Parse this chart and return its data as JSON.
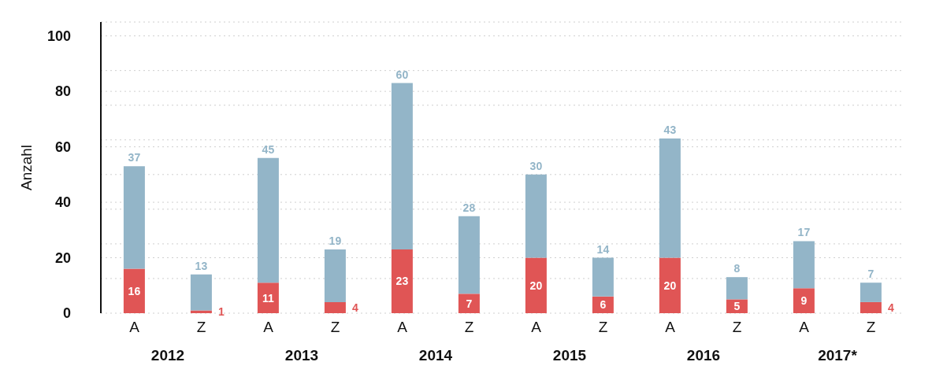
{
  "chart_data": {
    "type": "bar",
    "stacked": true,
    "ylabel": "Anzahl",
    "categories": [
      "A",
      "Z",
      "A",
      "Z",
      "A",
      "Z",
      "A",
      "Z",
      "A",
      "Z",
      "A",
      "Z"
    ],
    "series": [
      {
        "color": "#e05555",
        "values": [
          16,
          1,
          11,
          4,
          23,
          7,
          20,
          6,
          20,
          5,
          9,
          4
        ]
      },
      {
        "color": "#93b5c8",
        "values": [
          37,
          13,
          45,
          19,
          60,
          28,
          30,
          14,
          43,
          8,
          17,
          7
        ]
      }
    ],
    "annotations": [
      "2012",
      "2013",
      "2014",
      "2015",
      "2016",
      "2017*"
    ],
    "ylim": [
      0,
      105
    ],
    "yticks": [
      0,
      {
        "value": 12.5,
        "label": null
      },
      20,
      {
        "value": 25,
        "label": null
      },
      {
        "value": 37.5,
        "label": null
      },
      40,
      {
        "value": 50,
        "label": null
      },
      60,
      {
        "value": 62.5,
        "label": null
      },
      {
        "value": 75,
        "label": null
      },
      80,
      {
        "value": 87.5,
        "label": null
      },
      100
    ],
    "grid": "y",
    "data_labels": true,
    "legend": false
  }
}
